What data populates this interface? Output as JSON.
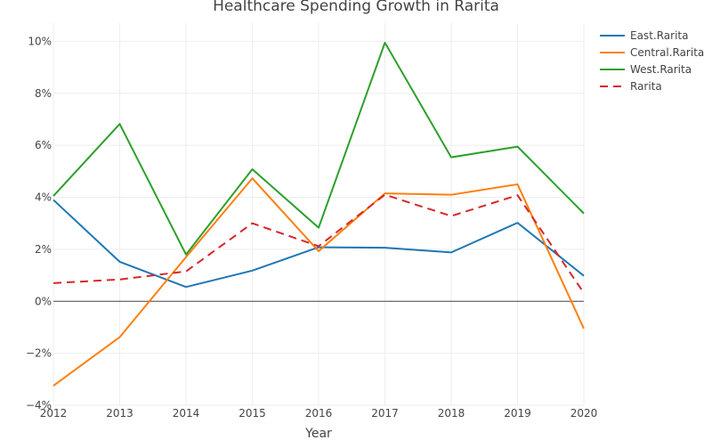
{
  "chart_data": {
    "type": "line",
    "title": "Healthcare Spending Growth in Rarita",
    "xlabel": "Year",
    "ylabel": "",
    "x": [
      2012,
      2013,
      2014,
      2015,
      2016,
      2017,
      2018,
      2019,
      2020
    ],
    "ylim": [
      -4,
      10.7
    ],
    "yticks": [
      -4,
      -2,
      0,
      2,
      4,
      6,
      8,
      10
    ],
    "ytick_labels": [
      "−4%",
      "−2%",
      "0%",
      "2%",
      "4%",
      "6%",
      "8%",
      "10%"
    ],
    "grid": true,
    "legend_position": "top-right",
    "series": [
      {
        "name": "East.Rarita",
        "color": "#1f77b4",
        "dash": "solid",
        "values": [
          3.9,
          1.52,
          0.55,
          1.18,
          2.08,
          2.06,
          1.88,
          3.02,
          0.98
        ]
      },
      {
        "name": "Central.Rarita",
        "color": "#ff7f0e",
        "dash": "solid",
        "values": [
          -3.25,
          -1.38,
          1.7,
          4.73,
          1.93,
          4.15,
          4.1,
          4.5,
          -1.05
        ]
      },
      {
        "name": "West.Rarita",
        "color": "#2ca02c",
        "dash": "solid",
        "values": [
          4.05,
          6.82,
          1.8,
          5.08,
          2.83,
          9.95,
          5.54,
          5.95,
          3.38
        ]
      },
      {
        "name": "Rarita",
        "color": "#d62728",
        "dash": "dash",
        "values": [
          0.7,
          0.84,
          1.15,
          3.0,
          2.12,
          4.1,
          3.28,
          4.08,
          0.32
        ]
      }
    ]
  }
}
